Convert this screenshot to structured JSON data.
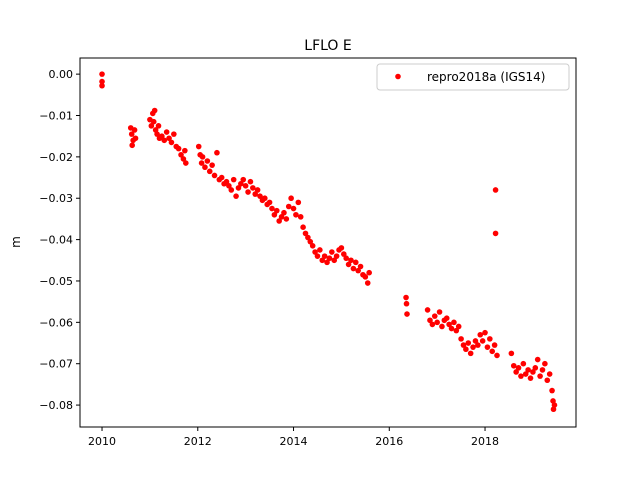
{
  "chart_data": {
    "type": "scatter",
    "title": "LFLO E",
    "xlabel": "",
    "ylabel": "m",
    "xlim": [
      2009.54,
      2019.9
    ],
    "ylim": [
      -0.0853,
      0.0039
    ],
    "xticks": [
      2010,
      2012,
      2014,
      2016,
      2018
    ],
    "xtick_labels": [
      "2010",
      "2012",
      "2014",
      "2016",
      "2018"
    ],
    "yticks": [
      0.0,
      -0.01,
      -0.02,
      -0.03,
      -0.04,
      -0.05,
      -0.06,
      -0.07,
      -0.08
    ],
    "ytick_labels": [
      "0.00",
      "−0.01",
      "−0.02",
      "−0.03",
      "−0.04",
      "−0.05",
      "−0.06",
      "−0.07",
      "−0.08"
    ],
    "grid": false,
    "legend_position": "top-right",
    "series": [
      {
        "name": "repro2018a (IGS14)",
        "color": "#ff0000",
        "marker": "circle",
        "points": [
          [
            2010.0,
            0.0
          ],
          [
            2010.0,
            -0.0018
          ],
          [
            2010.0,
            -0.0028
          ],
          [
            2010.6,
            -0.013
          ],
          [
            2010.62,
            -0.0145
          ],
          [
            2010.65,
            -0.016
          ],
          [
            2010.68,
            -0.0135
          ],
          [
            2010.7,
            -0.0155
          ],
          [
            2010.63,
            -0.0172
          ],
          [
            2011.0,
            -0.011
          ],
          [
            2011.03,
            -0.0125
          ],
          [
            2011.06,
            -0.0095
          ],
          [
            2011.08,
            -0.0115
          ],
          [
            2011.1,
            -0.0088
          ],
          [
            2011.12,
            -0.0135
          ],
          [
            2011.15,
            -0.0145
          ],
          [
            2011.18,
            -0.0125
          ],
          [
            2011.2,
            -0.0155
          ],
          [
            2011.25,
            -0.015
          ],
          [
            2011.3,
            -0.016
          ],
          [
            2011.35,
            -0.014
          ],
          [
            2011.4,
            -0.0155
          ],
          [
            2011.45,
            -0.0165
          ],
          [
            2011.5,
            -0.0145
          ],
          [
            2011.55,
            -0.0175
          ],
          [
            2011.6,
            -0.018
          ],
          [
            2011.65,
            -0.0195
          ],
          [
            2011.7,
            -0.0205
          ],
          [
            2011.73,
            -0.0185
          ],
          [
            2011.75,
            -0.0215
          ],
          [
            2012.02,
            -0.0175
          ],
          [
            2012.05,
            -0.0195
          ],
          [
            2012.08,
            -0.0215
          ],
          [
            2012.1,
            -0.02
          ],
          [
            2012.15,
            -0.0225
          ],
          [
            2012.2,
            -0.021
          ],
          [
            2012.25,
            -0.0235
          ],
          [
            2012.3,
            -0.022
          ],
          [
            2012.35,
            -0.0245
          ],
          [
            2012.4,
            -0.019
          ],
          [
            2012.45,
            -0.0255
          ],
          [
            2012.5,
            -0.025
          ],
          [
            2012.55,
            -0.0265
          ],
          [
            2012.6,
            -0.026
          ],
          [
            2012.65,
            -0.027
          ],
          [
            2012.7,
            -0.028
          ],
          [
            2012.75,
            -0.0255
          ],
          [
            2012.8,
            -0.0295
          ],
          [
            2012.85,
            -0.0275
          ],
          [
            2012.9,
            -0.0265
          ],
          [
            2012.95,
            -0.0255
          ],
          [
            2013.0,
            -0.027
          ],
          [
            2013.05,
            -0.0285
          ],
          [
            2013.1,
            -0.026
          ],
          [
            2013.15,
            -0.0275
          ],
          [
            2013.2,
            -0.029
          ],
          [
            2013.25,
            -0.028
          ],
          [
            2013.3,
            -0.0295
          ],
          [
            2013.35,
            -0.0305
          ],
          [
            2013.4,
            -0.03
          ],
          [
            2013.45,
            -0.0315
          ],
          [
            2013.5,
            -0.031
          ],
          [
            2013.55,
            -0.0325
          ],
          [
            2013.6,
            -0.034
          ],
          [
            2013.65,
            -0.033
          ],
          [
            2013.7,
            -0.0355
          ],
          [
            2013.75,
            -0.0345
          ],
          [
            2013.8,
            -0.0335
          ],
          [
            2013.85,
            -0.035
          ],
          [
            2013.9,
            -0.032
          ],
          [
            2013.95,
            -0.03
          ],
          [
            2014.0,
            -0.0325
          ],
          [
            2014.05,
            -0.034
          ],
          [
            2014.1,
            -0.031
          ],
          [
            2014.15,
            -0.0345
          ],
          [
            2014.2,
            -0.037
          ],
          [
            2014.25,
            -0.0385
          ],
          [
            2014.3,
            -0.0395
          ],
          [
            2014.35,
            -0.0405
          ],
          [
            2014.4,
            -0.0415
          ],
          [
            2014.45,
            -0.043
          ],
          [
            2014.5,
            -0.044
          ],
          [
            2014.55,
            -0.0425
          ],
          [
            2014.6,
            -0.045
          ],
          [
            2014.65,
            -0.044
          ],
          [
            2014.7,
            -0.0455
          ],
          [
            2014.75,
            -0.0445
          ],
          [
            2014.8,
            -0.043
          ],
          [
            2014.85,
            -0.045
          ],
          [
            2014.9,
            -0.044
          ],
          [
            2014.95,
            -0.0425
          ],
          [
            2015.0,
            -0.042
          ],
          [
            2015.05,
            -0.0435
          ],
          [
            2015.1,
            -0.0445
          ],
          [
            2015.15,
            -0.046
          ],
          [
            2015.2,
            -0.045
          ],
          [
            2015.25,
            -0.047
          ],
          [
            2015.3,
            -0.0455
          ],
          [
            2015.35,
            -0.0475
          ],
          [
            2015.4,
            -0.0465
          ],
          [
            2015.45,
            -0.0485
          ],
          [
            2015.5,
            -0.049
          ],
          [
            2015.55,
            -0.0505
          ],
          [
            2015.58,
            -0.048
          ],
          [
            2016.35,
            -0.054
          ],
          [
            2016.36,
            -0.0555
          ],
          [
            2016.37,
            -0.058
          ],
          [
            2016.8,
            -0.057
          ],
          [
            2016.85,
            -0.0595
          ],
          [
            2016.9,
            -0.0605
          ],
          [
            2016.95,
            -0.0585
          ],
          [
            2017.0,
            -0.06
          ],
          [
            2017.05,
            -0.0575
          ],
          [
            2017.1,
            -0.061
          ],
          [
            2017.15,
            -0.0595
          ],
          [
            2017.2,
            -0.059
          ],
          [
            2017.25,
            -0.0605
          ],
          [
            2017.3,
            -0.0615
          ],
          [
            2017.35,
            -0.06
          ],
          [
            2017.4,
            -0.062
          ],
          [
            2017.45,
            -0.061
          ],
          [
            2017.5,
            -0.064
          ],
          [
            2017.55,
            -0.0655
          ],
          [
            2017.6,
            -0.0665
          ],
          [
            2017.65,
            -0.065
          ],
          [
            2017.7,
            -0.0675
          ],
          [
            2017.75,
            -0.066
          ],
          [
            2017.8,
            -0.0645
          ],
          [
            2017.85,
            -0.0655
          ],
          [
            2017.9,
            -0.063
          ],
          [
            2017.95,
            -0.0645
          ],
          [
            2018.0,
            -0.0625
          ],
          [
            2018.05,
            -0.066
          ],
          [
            2018.1,
            -0.064
          ],
          [
            2018.15,
            -0.067
          ],
          [
            2018.2,
            -0.0655
          ],
          [
            2018.25,
            -0.068
          ],
          [
            2018.22,
            -0.028
          ],
          [
            2018.22,
            -0.0385
          ],
          [
            2018.55,
            -0.0675
          ],
          [
            2018.6,
            -0.0705
          ],
          [
            2018.65,
            -0.072
          ],
          [
            2018.7,
            -0.071
          ],
          [
            2018.75,
            -0.073
          ],
          [
            2018.8,
            -0.07
          ],
          [
            2018.85,
            -0.0725
          ],
          [
            2018.9,
            -0.0715
          ],
          [
            2018.95,
            -0.0735
          ],
          [
            2019.0,
            -0.072
          ],
          [
            2019.05,
            -0.071
          ],
          [
            2019.1,
            -0.069
          ],
          [
            2019.15,
            -0.073
          ],
          [
            2019.2,
            -0.0715
          ],
          [
            2019.25,
            -0.07
          ],
          [
            2019.3,
            -0.074
          ],
          [
            2019.35,
            -0.0725
          ],
          [
            2019.4,
            -0.0765
          ],
          [
            2019.42,
            -0.079
          ],
          [
            2019.43,
            -0.081
          ],
          [
            2019.45,
            -0.08
          ]
        ]
      }
    ]
  }
}
